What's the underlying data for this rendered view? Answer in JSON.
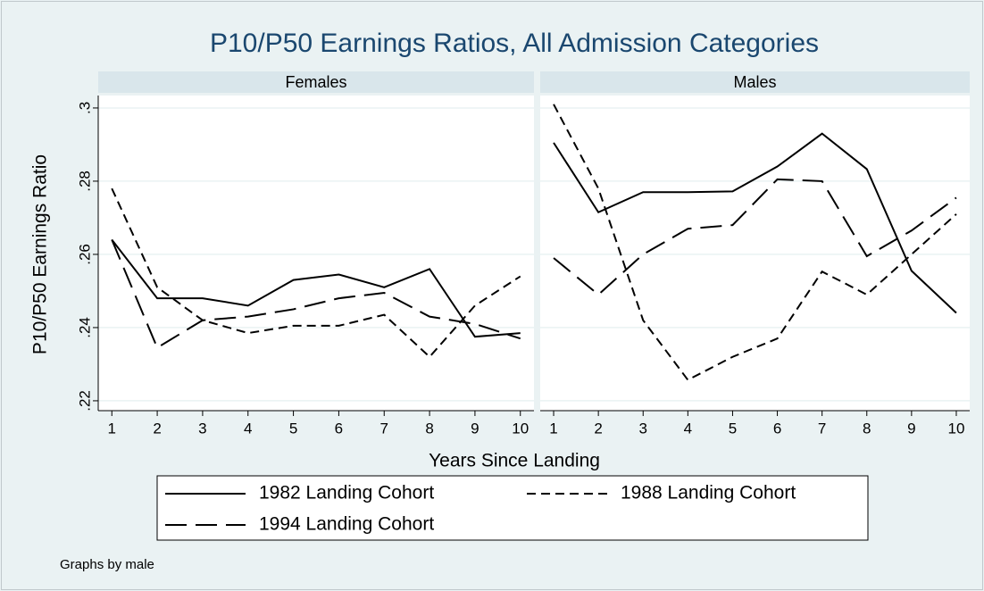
{
  "chart_data": {
    "type": "line",
    "title": "P10/P50 Earnings Ratios, All Admission Categories",
    "xlabel": "Years Since Landing",
    "ylabel": "P10/P50 Earnings Ratio",
    "note": "Graphs by male",
    "x": [
      1,
      2,
      3,
      4,
      5,
      6,
      7,
      8,
      9,
      10
    ],
    "xlim": [
      0.7,
      10.3
    ],
    "xticks": [
      1,
      2,
      3,
      4,
      5,
      6,
      7,
      8,
      9,
      10
    ],
    "ylim": [
      0.2173,
      0.3034
    ],
    "yticks": [
      {
        "value": 0.22,
        "label": ".22"
      },
      {
        "value": 0.24,
        "label": ".24"
      },
      {
        "value": 0.26,
        "label": ".26"
      },
      {
        "value": 0.28,
        "label": ".28"
      },
      {
        "value": 0.3,
        "label": ".3"
      }
    ],
    "grid": true,
    "color": "#000000",
    "series": [
      {
        "name": "1982 Landing Cohort",
        "dash": "solid"
      },
      {
        "name": "1988 Landing Cohort",
        "dash": "short"
      },
      {
        "name": "1994 Landing Cohort",
        "dash": "long"
      }
    ],
    "panels": [
      {
        "title": "Females",
        "series": [
          {
            "values": [
              0.264,
              0.248,
              0.248,
              0.246,
              0.253,
              0.2545,
              0.251,
              0.256,
              0.2375,
              0.2385
            ]
          },
          {
            "values": [
              0.278,
              0.251,
              0.242,
              0.2385,
              0.2405,
              0.2405,
              0.2435,
              0.232,
              0.246,
              0.254
            ]
          },
          {
            "values": [
              0.264,
              0.2345,
              0.242,
              0.243,
              0.245,
              0.248,
              0.2495,
              0.243,
              0.241,
              0.237
            ]
          }
        ]
      },
      {
        "title": "Males",
        "series": [
          {
            "values": [
              0.2905,
              0.2715,
              0.277,
              0.277,
              0.2772,
              0.284,
              0.293,
              0.2833,
              0.2555,
              0.244
            ]
          },
          {
            "values": [
              0.301,
              0.278,
              0.242,
              0.2257,
              0.232,
              0.237,
              0.2553,
              0.249,
              0.26,
              0.271
            ]
          },
          {
            "values": [
              0.259,
              0.249,
              0.26,
              0.267,
              0.268,
              0.2805,
              0.28,
              0.2595,
              0.2665,
              0.2755
            ]
          }
        ]
      }
    ]
  }
}
